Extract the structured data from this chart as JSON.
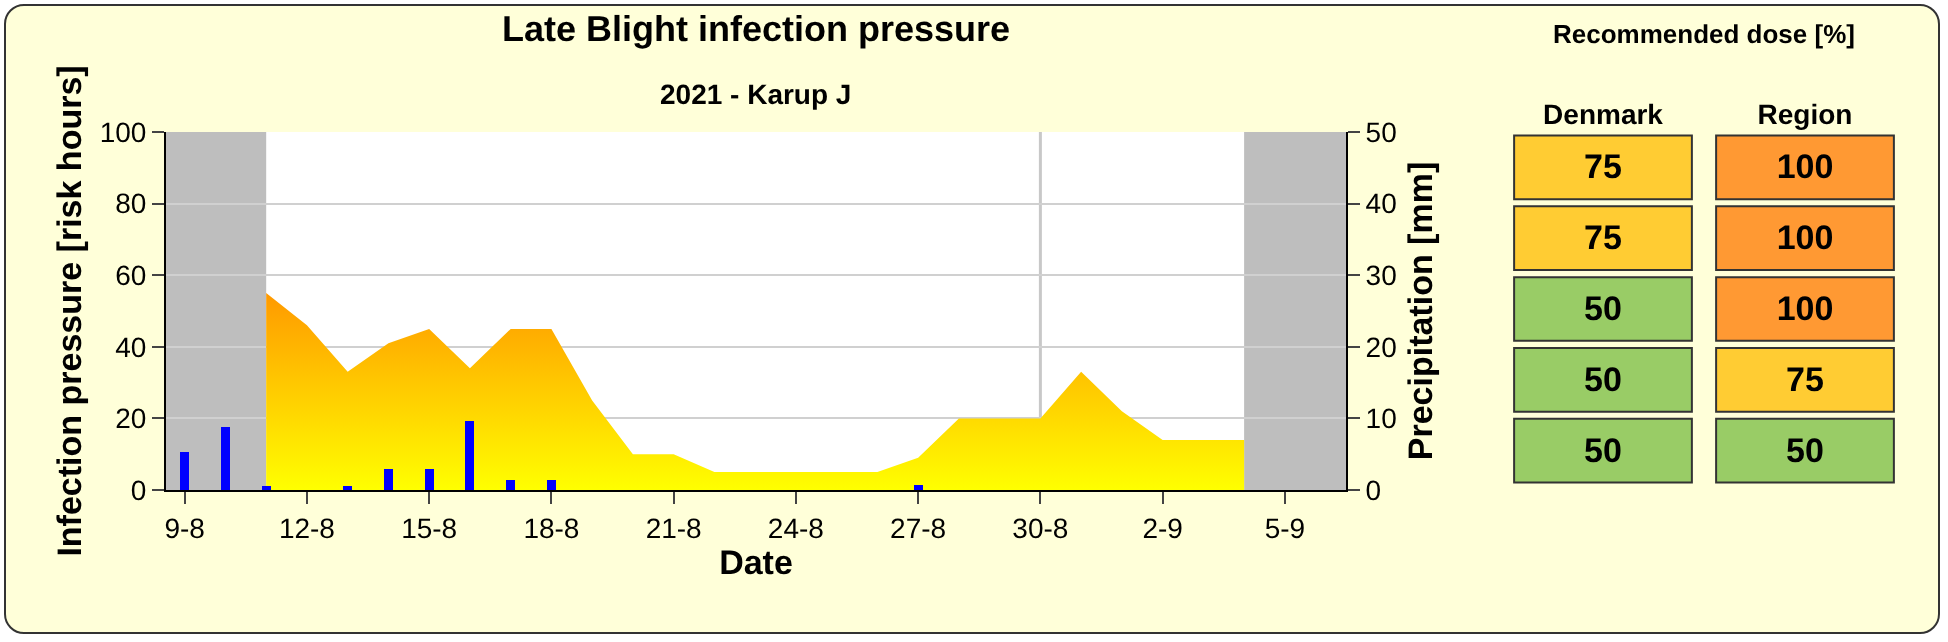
{
  "chart_data": [
    {
      "type": "area",
      "title": "Late Blight infection pressure",
      "subtitle": "2021 - Karup J",
      "xlabel": "Date",
      "ylabel": "Infection pressure [risk hours]",
      "y2label": "Precipitation [mm]",
      "xlim": [
        "2021-08-08T13:00",
        "2021-09-06T12:00"
      ],
      "xticks": [
        {
          "value": "2021-08-09",
          "label": "9-8"
        },
        {
          "value": "2021-08-12",
          "label": "12-8"
        },
        {
          "value": "2021-08-15",
          "label": "15-8"
        },
        {
          "value": "2021-08-18",
          "label": "18-8"
        },
        {
          "value": "2021-08-21",
          "label": "21-8"
        },
        {
          "value": "2021-08-24",
          "label": "24-8"
        },
        {
          "value": "2021-08-27",
          "label": "27-8"
        },
        {
          "value": "2021-08-30",
          "label": "30-8"
        },
        {
          "value": "2021-09-02",
          "label": "2-9"
        },
        {
          "value": "2021-09-05",
          "label": "5-9"
        }
      ],
      "ylim": [
        0,
        100
      ],
      "yticks": [
        0,
        20,
        40,
        60,
        80,
        100
      ],
      "y2lim": [
        0,
        50
      ],
      "y2ticks": [
        0,
        10,
        20,
        30,
        40,
        50
      ],
      "grid": "y",
      "series": [
        {
          "type": "area",
          "color": "#ff9900",
          "x": [
            "2021-08-11",
            "2021-08-12",
            "2021-08-13",
            "2021-08-14",
            "2021-08-15",
            "2021-08-16",
            "2021-08-17",
            "2021-08-18",
            "2021-08-19",
            "2021-08-20",
            "2021-08-21",
            "2021-08-22",
            "2021-08-23",
            "2021-08-24",
            "2021-08-25",
            "2021-08-26",
            "2021-08-27",
            "2021-08-28",
            "2021-08-29",
            "2021-08-30",
            "2021-08-31",
            "2021-09-01",
            "2021-09-02",
            "2021-09-03",
            "2021-09-04"
          ],
          "values": [
            55,
            46,
            33,
            41,
            45,
            34,
            45,
            45,
            25,
            10,
            10,
            5,
            5,
            5,
            5,
            5,
            9,
            20,
            20,
            20,
            33,
            22,
            14,
            14,
            14
          ]
        },
        {
          "type": "bar",
          "axis": "y2",
          "color": "#0000ff",
          "x": [
            "2021-08-09",
            "2021-08-10",
            "2021-08-11",
            "2021-08-13",
            "2021-08-14",
            "2021-08-15",
            "2021-08-16",
            "2021-08-17",
            "2021-08-18",
            "2021-08-27"
          ],
          "values": [
            5.3,
            8.8,
            0.5,
            0.5,
            3,
            3,
            9.7,
            1.4,
            1.4,
            0.7
          ]
        }
      ],
      "bands": [
        {
          "axis": "x",
          "from": "2021-08-08T13:00",
          "to": "2021-08-11",
          "color": "#bebebe"
        },
        {
          "axis": "x",
          "from": "2021-09-04",
          "to": "2021-09-06T12:00",
          "color": "#bebebe"
        }
      ],
      "ref_lines": [
        {
          "axis": "x",
          "value": "2021-08-30",
          "color": "#c8c8c8"
        }
      ]
    },
    {
      "type": "heatmap",
      "title": "Recommended dose [%]",
      "categories": [
        "Denmark",
        "Region"
      ],
      "y_categories": [
        null,
        null,
        null,
        null,
        null
      ],
      "cells": [
        [
          75,
          100
        ],
        [
          75,
          100
        ],
        [
          50,
          100
        ],
        [
          50,
          75
        ],
        [
          50,
          50
        ]
      ],
      "colors": [
        [
          "#ffcc33",
          "#ff9933"
        ],
        [
          "#ffcc33",
          "#ff9933"
        ],
        [
          "#99cc66",
          "#ff9933"
        ],
        [
          "#99cc66",
          "#ffcc33"
        ],
        [
          "#99cc66",
          "#99cc66"
        ]
      ],
      "data_labels": true
    }
  ]
}
